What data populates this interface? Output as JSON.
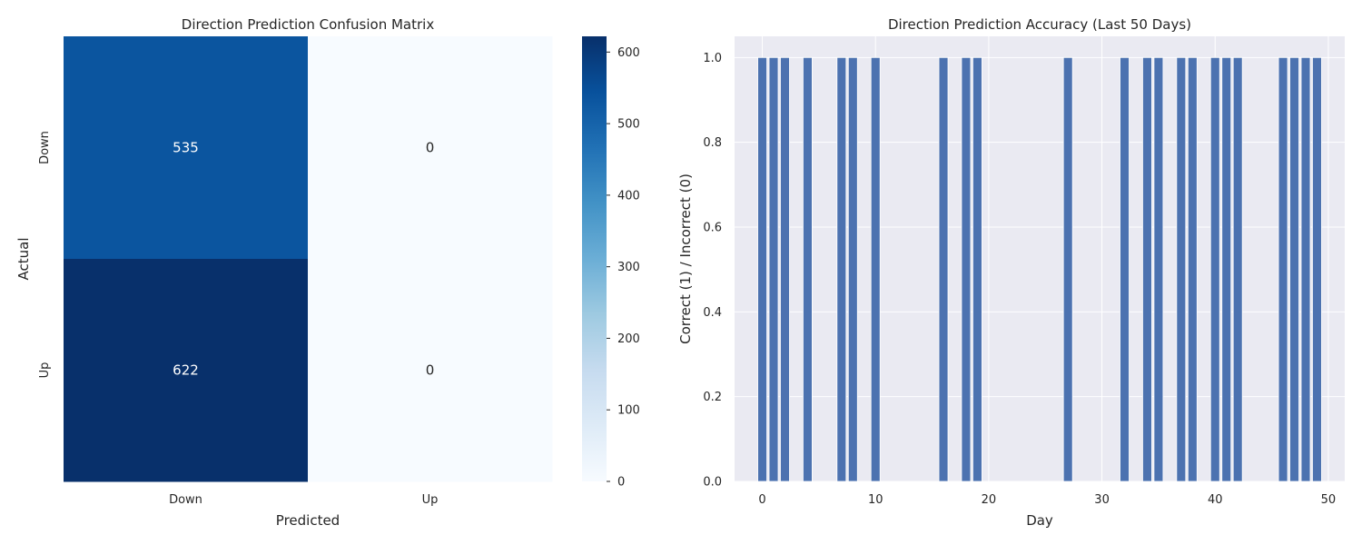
{
  "chart_data": [
    {
      "type": "heatmap",
      "title": "Direction Prediction Confusion Matrix",
      "xlabel": "Predicted",
      "ylabel": "Actual",
      "x_categories": [
        "Down",
        "Up"
      ],
      "y_categories": [
        "Down",
        "Up"
      ],
      "values": [
        [
          535,
          0
        ],
        [
          622,
          0
        ]
      ],
      "colormap": "Blues",
      "colorbar": {
        "min": 0,
        "max": 622,
        "ticks": [
          0,
          100,
          200,
          300,
          400,
          500,
          600
        ]
      }
    },
    {
      "type": "bar",
      "title": "Direction Prediction Accuracy (Last 50 Days)",
      "xlabel": "Day",
      "ylabel": "Correct (1) / Incorrect (0)",
      "x": [
        0,
        1,
        2,
        3,
        4,
        5,
        6,
        7,
        8,
        9,
        10,
        11,
        12,
        13,
        14,
        15,
        16,
        17,
        18,
        19,
        20,
        21,
        22,
        23,
        24,
        25,
        26,
        27,
        28,
        29,
        30,
        31,
        32,
        33,
        34,
        35,
        36,
        37,
        38,
        39,
        40,
        41,
        42,
        43,
        44,
        45,
        46,
        47,
        48,
        49
      ],
      "values": [
        1,
        1,
        1,
        0,
        1,
        0,
        0,
        1,
        1,
        0,
        1,
        0,
        0,
        0,
        0,
        0,
        1,
        0,
        1,
        1,
        0,
        0,
        0,
        0,
        0,
        0,
        0,
        1,
        0,
        0,
        0,
        0,
        1,
        0,
        1,
        1,
        0,
        1,
        1,
        0,
        1,
        1,
        1,
        0,
        0,
        0,
        1,
        1,
        1,
        1
      ],
      "xlim": [
        -2.45,
        51.45
      ],
      "ylim": [
        0,
        1.05
      ],
      "xticks": [
        0,
        10,
        20,
        30,
        40,
        50
      ],
      "yticks": [
        0.0,
        0.2,
        0.4,
        0.6,
        0.8,
        1.0
      ],
      "ytick_labels": [
        "0.0",
        "0.2",
        "0.4",
        "0.6",
        "0.8",
        "1.0"
      ],
      "bar_color": "#4c72b0",
      "grid": true
    }
  ]
}
